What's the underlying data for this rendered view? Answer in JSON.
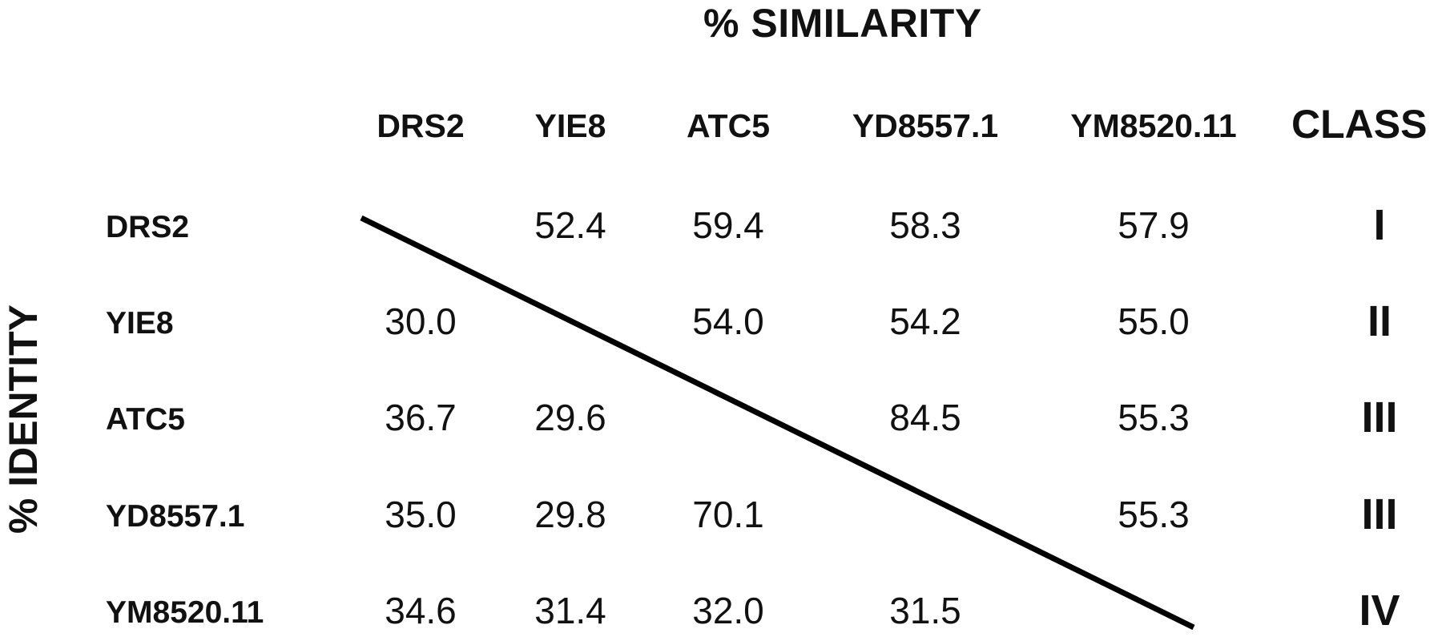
{
  "chart_data": {
    "type": "table",
    "title": "% SIMILARITY",
    "ylabel": "% IDENTITY",
    "columns": [
      "DRS2",
      "YIE8",
      "ATC5",
      "YD8557.1",
      "YM8520.11"
    ],
    "class_header": "CLASS",
    "rows": [
      {
        "label": "DRS2",
        "cells": [
          "",
          "52.4",
          "59.4",
          "58.3",
          "57.9"
        ],
        "class": "I"
      },
      {
        "label": "YIE8",
        "cells": [
          "30.0",
          "",
          "54.0",
          "54.2",
          "55.0"
        ],
        "class": "II"
      },
      {
        "label": "ATC5",
        "cells": [
          "36.7",
          "29.6",
          "",
          "84.5",
          "55.3"
        ],
        "class": "III"
      },
      {
        "label": "YD8557.1",
        "cells": [
          "35.0",
          "29.8",
          "70.1",
          "",
          "55.3"
        ],
        "class": "III"
      },
      {
        "label": "YM8520.11",
        "cells": [
          "34.6",
          "31.4",
          "32.0",
          "31.5",
          ""
        ],
        "class": "IV"
      }
    ]
  }
}
